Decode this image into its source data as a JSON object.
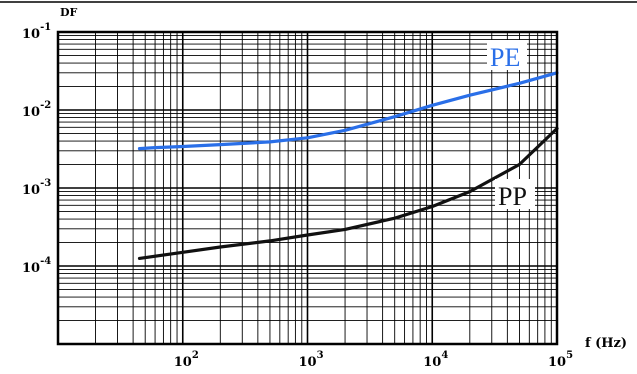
{
  "chart_data": {
    "type": "line",
    "title": "",
    "xlabel": "f (Hz)",
    "ylabel": "DF",
    "xscale": "log",
    "yscale": "log",
    "xlim": [
      10,
      100000
    ],
    "ylim": [
      1e-05,
      0.1
    ],
    "grid": true,
    "x_ticks": [
      {
        "value": 100,
        "base": "10",
        "exp": "2"
      },
      {
        "value": 1000,
        "base": "10",
        "exp": "3"
      },
      {
        "value": 10000,
        "base": "10",
        "exp": "4"
      },
      {
        "value": 100000,
        "base": "10",
        "exp": "5"
      }
    ],
    "y_ticks": [
      {
        "value": 0.1,
        "base": "10",
        "exp": "-1"
      },
      {
        "value": 0.01,
        "base": "10",
        "exp": "-2"
      },
      {
        "value": 0.001,
        "base": "10",
        "exp": "-3"
      },
      {
        "value": 0.0001,
        "base": "10",
        "exp": "-4"
      }
    ],
    "series": [
      {
        "name": "PE",
        "color": "#2a6fe8",
        "x": [
          45,
          60,
          100,
          200,
          500,
          1000,
          2000,
          5000,
          10000,
          20000,
          50000,
          100000
        ],
        "y": [
          0.0032,
          0.0033,
          0.0034,
          0.0036,
          0.0039,
          0.0044,
          0.0055,
          0.0082,
          0.0115,
          0.0155,
          0.022,
          0.03
        ]
      },
      {
        "name": "PP",
        "color": "#111111",
        "x": [
          45,
          100,
          200,
          500,
          1000,
          2000,
          5000,
          10000,
          20000,
          50000,
          100000
        ],
        "y": [
          0.000125,
          0.00015,
          0.000175,
          0.00021,
          0.00025,
          0.000295,
          0.00041,
          0.00058,
          0.0009,
          0.002,
          0.0058
        ]
      }
    ]
  }
}
